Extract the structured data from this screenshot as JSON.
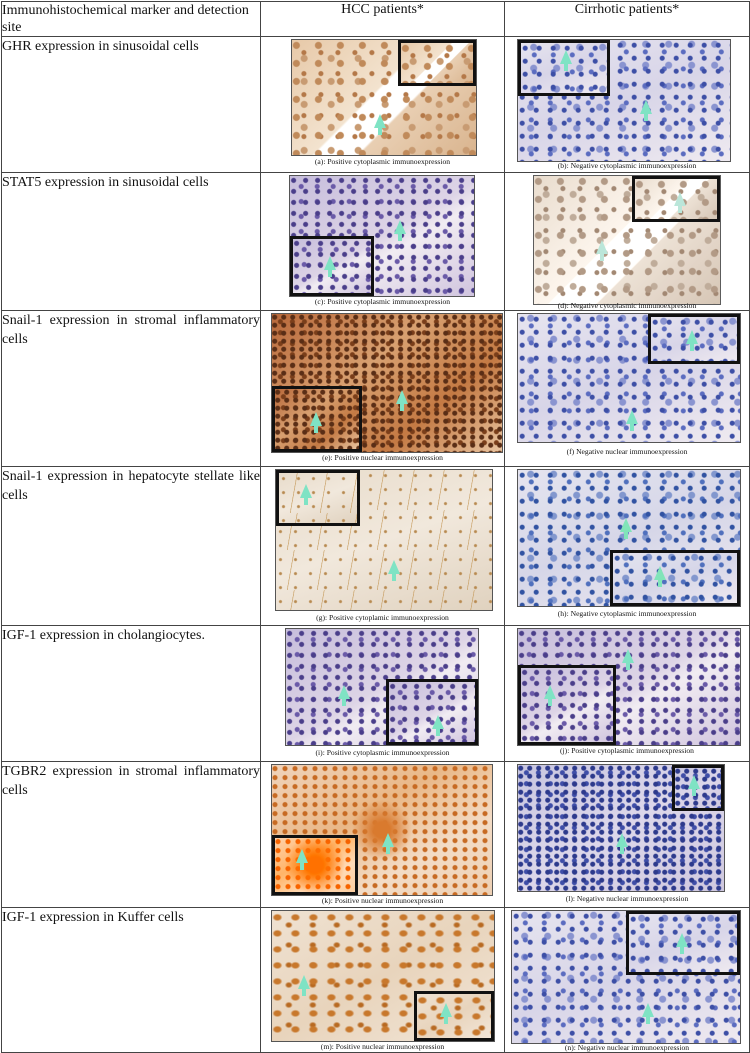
{
  "header": {
    "col1": "Immunohistochemical marker and detection site",
    "col2": "HCC patients*",
    "col3": "Cirrhotic patients*"
  },
  "rows": [
    {
      "label": "GHR expression in sinusoidal cells",
      "hcc_caption": "(a): Positive cytoplasmic immunoexpression",
      "cirr_caption": "(b): Negative cytoplasmic immunoexpression"
    },
    {
      "label": "STAT5 expression in sinusoidal cells",
      "hcc_caption": "(c): Positive cytoplasmic immunoexpression",
      "cirr_caption": "(d): Negative cytoplasmic immunoexpression"
    },
    {
      "label": "Snail-1 expression in stromal inflammatory cells",
      "hcc_caption": "(e): Positive nuclear immunoexpression",
      "cirr_caption": "(f) Negative nuclear immunoexpression"
    },
    {
      "label": "Snail-1 expression in hepatocyte stellate like cells",
      "hcc_caption": "(g): Positive cytoplamic immunoexpression",
      "cirr_caption": "(h): Negative cytoplasmic immunoexpression"
    },
    {
      "label": "IGF-1 expression in cholangiocytes.",
      "hcc_caption": "(i): Positive cytoplasmic immunoexpression",
      "cirr_caption": "(j): Positive cytoplasmic immunoexpression"
    },
    {
      "label": "TGBR2 expression in stromal inflammatory cells",
      "hcc_caption": "(k): Positive nuclear immunoexpression",
      "cirr_caption": "(l): Negative nuclear immunoexpression"
    },
    {
      "label": "IGF-1 expression in Kuffer cells",
      "hcc_caption": "(m): Positive nuclear immunoexpression",
      "cirr_caption": "(n): Negative nuclear immunoexpression"
    }
  ]
}
